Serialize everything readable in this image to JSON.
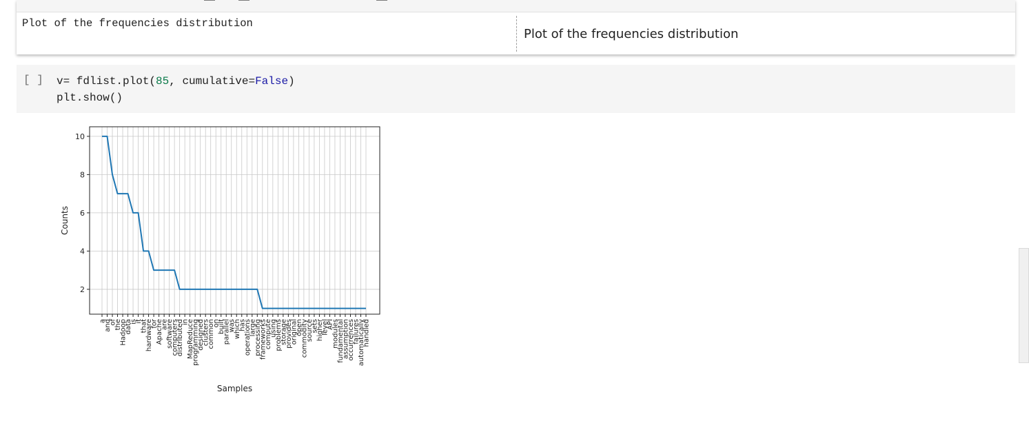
{
  "markdown_cell": {
    "source": "Plot of the frequencies distribution",
    "preview": "Plot of the frequencies distribution"
  },
  "code_cell": {
    "run_button_label": "[ ]",
    "line1": {
      "prefix": "v= fdlist.plot(",
      "num": "85",
      "mid": ", cumulative=",
      "kw": "False",
      "suffix": ")"
    },
    "line2": "plt.show()"
  },
  "chart_data": {
    "type": "line",
    "title": "",
    "xlabel": "Samples",
    "ylabel": "Counts",
    "ylim": [
      0.7,
      10.5
    ],
    "yticks": [
      2,
      4,
      6,
      8,
      10
    ],
    "grid": true,
    "series_color": "#1f77b4",
    "x": [
      "a",
      "and",
      "of",
      "the",
      "Hadoop",
      "data",
      "is",
      "it",
      "that",
      "hardware",
      "for",
      "Apache",
      "are",
      "software",
      "computers",
      "distributed",
      "in",
      "MapReduce",
      "programming",
      "designed",
      "clusters",
      "common",
      "on",
      "built",
      "parallel",
      "was",
      "which",
      "has",
      "operations",
      "large",
      "processing",
      "frameworks",
      "compute",
      "using",
      "problems",
      "storage",
      "provides",
      "original",
      "open",
      "commodity",
      "source",
      "sets",
      "higher",
      "level",
      "API",
      "modules",
      "fundamental",
      "assumption",
      "occurrences",
      "failures",
      "automatically",
      "handled"
    ],
    "values": [
      10,
      10,
      8,
      7,
      7,
      7,
      6,
      6,
      4,
      4,
      3,
      3,
      3,
      3,
      3,
      2,
      2,
      2,
      2,
      2,
      2,
      2,
      2,
      2,
      2,
      2,
      2,
      2,
      2,
      2,
      2,
      1,
      1,
      1,
      1,
      1,
      1,
      1,
      1,
      1,
      1,
      1,
      1,
      1,
      1,
      1,
      1,
      1,
      1,
      1,
      1,
      1
    ]
  }
}
